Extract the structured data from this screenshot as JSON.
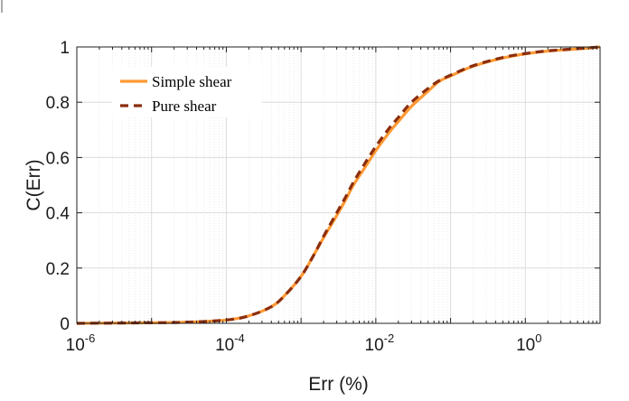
{
  "chart_data": {
    "type": "line",
    "xlabel": "Err (%)",
    "ylabel": "C(Err)",
    "xscale": "log",
    "xlim": [
      1e-06,
      10
    ],
    "ylim": [
      0,
      1
    ],
    "grid": true,
    "legend_position": "top-left",
    "x_ticks": [
      {
        "base": "10",
        "exp": "-6"
      },
      {
        "base": "10",
        "exp": "-4"
      },
      {
        "base": "10",
        "exp": "-2"
      },
      {
        "base": "10",
        "exp": "0"
      }
    ],
    "y_ticks": [
      "0",
      "0.2",
      "0.4",
      "0.6",
      "0.8",
      "1"
    ],
    "series": [
      {
        "name": "Simple shear",
        "color": "#ff9933",
        "style": "solid",
        "x": [
          1e-06,
          1e-05,
          3e-05,
          0.0001,
          0.0002,
          0.0004,
          0.0006,
          0.001,
          0.0015,
          0.002,
          0.003,
          0.004,
          0.005,
          0.007,
          0.01,
          0.015,
          0.02,
          0.03,
          0.05,
          0.07,
          0.1,
          0.2,
          0.5,
          1,
          2,
          5,
          10
        ],
        "y": [
          0.0,
          0.002,
          0.004,
          0.012,
          0.027,
          0.06,
          0.1,
          0.17,
          0.25,
          0.31,
          0.39,
          0.45,
          0.5,
          0.56,
          0.625,
          0.69,
          0.73,
          0.785,
          0.84,
          0.875,
          0.895,
          0.93,
          0.96,
          0.975,
          0.985,
          0.993,
          1.0
        ]
      },
      {
        "name": "Pure shear",
        "color": "#8b2e0e",
        "style": "dashed",
        "x": [
          1e-06,
          1e-05,
          3e-05,
          0.0001,
          0.0002,
          0.0004,
          0.0006,
          0.001,
          0.0015,
          0.002,
          0.003,
          0.004,
          0.005,
          0.007,
          0.01,
          0.015,
          0.02,
          0.03,
          0.05,
          0.07,
          0.1,
          0.2,
          0.5,
          1,
          2,
          5,
          10
        ],
        "y": [
          0.0,
          0.002,
          0.004,
          0.012,
          0.027,
          0.06,
          0.1,
          0.17,
          0.25,
          0.315,
          0.4,
          0.46,
          0.51,
          0.575,
          0.64,
          0.705,
          0.745,
          0.8,
          0.85,
          0.878,
          0.898,
          0.932,
          0.962,
          0.976,
          0.986,
          0.994,
          1.0
        ]
      }
    ]
  }
}
